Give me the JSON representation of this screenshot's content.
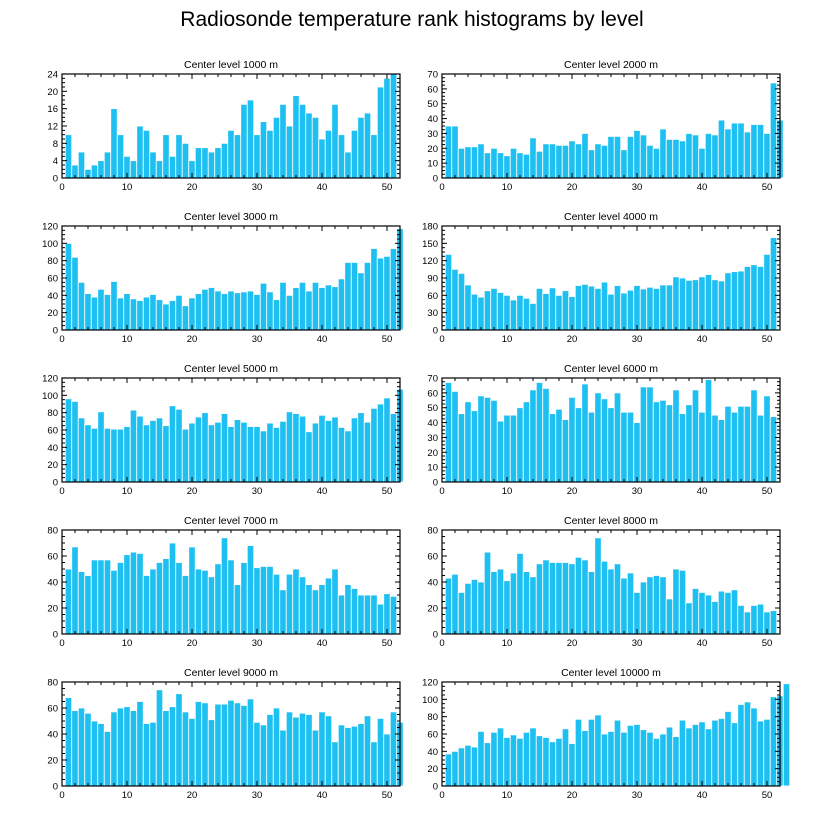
{
  "figure_title": "Radiosonde temperature rank histograms by level",
  "style": {
    "bar_color": "#1ec0f2",
    "bar_stroke": "#ffffff",
    "axis_color": "#000000"
  },
  "chart_data": [
    {
      "type": "bar",
      "title": "Center level 1000 m",
      "xlabel": "",
      "ylabel": "",
      "xlim": [
        0,
        52
      ],
      "xticks": [
        0,
        10,
        20,
        30,
        40,
        50
      ],
      "ylim": [
        0,
        24
      ],
      "yticks": [
        0,
        4,
        8,
        12,
        16,
        20,
        24
      ],
      "values": [
        10,
        3,
        6,
        2,
        3,
        4,
        6,
        16,
        10,
        5,
        4,
        12,
        11,
        6,
        4,
        10,
        5,
        10,
        8,
        4,
        7,
        7,
        6,
        7,
        8,
        11,
        10,
        17,
        18,
        10,
        13,
        11,
        14,
        17,
        12,
        19,
        17,
        15,
        14,
        9,
        11,
        17,
        10,
        6,
        11,
        14,
        15,
        10,
        21,
        23,
        24
      ]
    },
    {
      "type": "bar",
      "title": "Center level 2000 m",
      "xlabel": "",
      "ylabel": "",
      "xlim": [
        0,
        52
      ],
      "xticks": [
        0,
        10,
        20,
        30,
        40,
        50
      ],
      "ylim": [
        0,
        70
      ],
      "yticks": [
        0,
        10,
        20,
        30,
        40,
        50,
        60,
        70
      ],
      "values": [
        35,
        35,
        20,
        21,
        21,
        23,
        17,
        20,
        17,
        15,
        20,
        17,
        16,
        27,
        18,
        23,
        23,
        22,
        22,
        25,
        23,
        30,
        19,
        23,
        22,
        28,
        28,
        19,
        28,
        32,
        29,
        22,
        20,
        33,
        26,
        26,
        25,
        30,
        29,
        20,
        30,
        29,
        39,
        33,
        37,
        37,
        31,
        36,
        36,
        30,
        64,
        39
      ]
    },
    {
      "type": "bar",
      "title": "Center level 3000 m",
      "xlabel": "",
      "ylabel": "",
      "xlim": [
        0,
        52
      ],
      "xticks": [
        0,
        10,
        20,
        30,
        40,
        50
      ],
      "ylim": [
        0,
        120
      ],
      "yticks": [
        0,
        20,
        40,
        60,
        80,
        100,
        120
      ],
      "values": [
        100,
        84,
        55,
        42,
        38,
        47,
        41,
        56,
        37,
        42,
        36,
        34,
        38,
        41,
        35,
        30,
        34,
        40,
        28,
        37,
        42,
        47,
        49,
        45,
        42,
        45,
        43,
        44,
        45,
        41,
        54,
        44,
        35,
        55,
        40,
        49,
        55,
        45,
        55,
        49,
        52,
        50,
        59,
        78,
        78,
        66,
        78,
        94,
        83,
        85,
        94,
        117
      ]
    },
    {
      "type": "bar",
      "title": "Center level 4000 m",
      "xlabel": "",
      "ylabel": "",
      "xlim": [
        0,
        52
      ],
      "xticks": [
        0,
        10,
        20,
        30,
        40,
        50
      ],
      "ylim": [
        0,
        180
      ],
      "yticks": [
        0,
        30,
        60,
        90,
        120,
        150,
        180
      ],
      "values": [
        131,
        105,
        98,
        78,
        62,
        57,
        68,
        72,
        65,
        60,
        52,
        60,
        55,
        46,
        72,
        63,
        73,
        60,
        68,
        58,
        77,
        79,
        76,
        72,
        83,
        62,
        77,
        64,
        69,
        77,
        71,
        74,
        72,
        78,
        78,
        92,
        90,
        86,
        87,
        92,
        96,
        87,
        85,
        99,
        101,
        102,
        110,
        113,
        110,
        131,
        160
      ]
    },
    {
      "type": "bar",
      "title": "Center level 5000 m",
      "xlabel": "",
      "ylabel": "",
      "xlim": [
        0,
        52
      ],
      "xticks": [
        0,
        10,
        20,
        30,
        40,
        50
      ],
      "ylim": [
        0,
        120
      ],
      "yticks": [
        0,
        20,
        40,
        60,
        80,
        100,
        120
      ],
      "values": [
        96,
        93,
        74,
        66,
        62,
        81,
        62,
        61,
        61,
        64,
        83,
        76,
        66,
        71,
        74,
        65,
        88,
        84,
        61,
        68,
        75,
        80,
        66,
        69,
        79,
        64,
        72,
        69,
        64,
        64,
        59,
        68,
        63,
        70,
        81,
        79,
        76,
        58,
        68,
        77,
        71,
        75,
        63,
        59,
        74,
        80,
        69,
        85,
        90,
        97,
        79,
        107
      ]
    },
    {
      "type": "bar",
      "title": "Center level 6000 m",
      "xlabel": "",
      "ylabel": "",
      "xlim": [
        0,
        52
      ],
      "xticks": [
        0,
        10,
        20,
        30,
        40,
        50
      ],
      "ylim": [
        0,
        70
      ],
      "yticks": [
        0,
        10,
        20,
        30,
        40,
        50,
        60,
        70
      ],
      "values": [
        67,
        61,
        46,
        54,
        48,
        58,
        57,
        55,
        41,
        45,
        45,
        50,
        54,
        62,
        67,
        63,
        46,
        49,
        42,
        57,
        50,
        66,
        47,
        60,
        56,
        50,
        60,
        47,
        47,
        40,
        64,
        64,
        54,
        55,
        52,
        62,
        46,
        52,
        62,
        47,
        69,
        45,
        42,
        51,
        47,
        51,
        51,
        62,
        45,
        58,
        44
      ]
    },
    {
      "type": "bar",
      "title": "Center level 7000 m",
      "xlabel": "",
      "ylabel": "",
      "xlim": [
        0,
        52
      ],
      "xticks": [
        0,
        10,
        20,
        30,
        40,
        50
      ],
      "ylim": [
        0,
        80
      ],
      "yticks": [
        0,
        20,
        40,
        60,
        80
      ],
      "values": [
        50,
        67,
        48,
        45,
        57,
        57,
        57,
        49,
        55,
        61,
        63,
        62,
        45,
        50,
        55,
        58,
        70,
        55,
        45,
        67,
        50,
        49,
        44,
        54,
        74,
        57,
        38,
        55,
        68,
        51,
        52,
        52,
        46,
        34,
        46,
        50,
        44,
        38,
        34,
        38,
        43,
        50,
        30,
        38,
        35,
        30,
        30,
        30,
        23,
        31,
        29
      ]
    },
    {
      "type": "bar",
      "title": "Center level 8000 m",
      "xlabel": "",
      "ylabel": "",
      "xlim": [
        0,
        52
      ],
      "xticks": [
        0,
        10,
        20,
        30,
        40,
        50
      ],
      "ylim": [
        0,
        80
      ],
      "yticks": [
        0,
        20,
        40,
        60,
        80
      ],
      "values": [
        43,
        46,
        32,
        39,
        42,
        40,
        63,
        48,
        50,
        41,
        47,
        62,
        48,
        44,
        54,
        57,
        55,
        55,
        55,
        54,
        59,
        57,
        48,
        74,
        56,
        50,
        54,
        43,
        47,
        32,
        40,
        44,
        45,
        44,
        27,
        50,
        49,
        24,
        35,
        32,
        30,
        25,
        33,
        32,
        34,
        22,
        17,
        22,
        23,
        17,
        18
      ]
    },
    {
      "type": "bar",
      "title": "Center level 9000 m",
      "xlabel": "",
      "ylabel": "",
      "xlim": [
        0,
        52
      ],
      "xticks": [
        0,
        10,
        20,
        30,
        40,
        50
      ],
      "ylim": [
        0,
        80
      ],
      "yticks": [
        0,
        20,
        40,
        60,
        80
      ],
      "values": [
        68,
        58,
        60,
        56,
        50,
        48,
        42,
        57,
        60,
        61,
        58,
        65,
        48,
        49,
        74,
        58,
        61,
        71,
        57,
        52,
        65,
        64,
        51,
        63,
        63,
        66,
        64,
        62,
        67,
        49,
        47,
        55,
        60,
        43,
        57,
        53,
        56,
        55,
        43,
        57,
        54,
        34,
        47,
        45,
        46,
        48,
        54,
        34,
        52,
        40,
        57,
        49
      ]
    },
    {
      "type": "bar",
      "title": "Center level 10000 m",
      "xlabel": "",
      "ylabel": "",
      "xlim": [
        0,
        52
      ],
      "xticks": [
        0,
        10,
        20,
        30,
        40,
        50
      ],
      "ylim": [
        0,
        120
      ],
      "yticks": [
        0,
        20,
        40,
        60,
        80,
        100,
        120
      ],
      "values": [
        37,
        40,
        44,
        47,
        45,
        63,
        50,
        62,
        67,
        56,
        59,
        55,
        62,
        67,
        58,
        56,
        51,
        55,
        66,
        49,
        77,
        64,
        77,
        82,
        60,
        63,
        76,
        62,
        70,
        71,
        65,
        62,
        55,
        60,
        68,
        57,
        76,
        67,
        71,
        74,
        66,
        76,
        78,
        86,
        73,
        94,
        97,
        90,
        75,
        77,
        103,
        104,
        118
      ]
    }
  ]
}
